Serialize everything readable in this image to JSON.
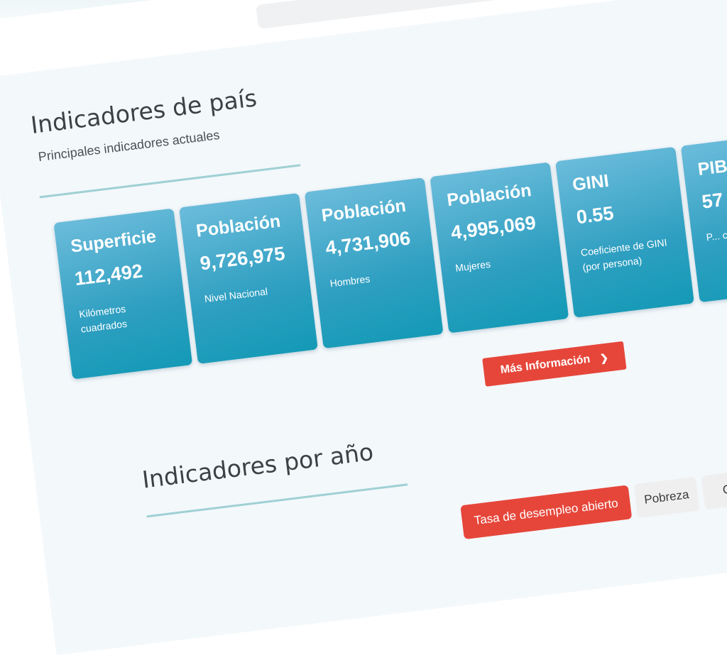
{
  "country_section": {
    "title": "Indicadores de país",
    "subtitle": "Principales indicadores actuales",
    "cards": [
      {
        "title": "Superficie",
        "value": "112,492",
        "description": "Kilómetros cuadrados"
      },
      {
        "title": "Población",
        "value": "9,726,975",
        "description": "Nivel Nacional"
      },
      {
        "title": "Población",
        "value": "4,731,906",
        "description": "Hombres"
      },
      {
        "title": "Población",
        "value": "4,995,069",
        "description": "Mujeres"
      },
      {
        "title": "GINI",
        "value": "0.55",
        "description": "Coeficiente de GINI (por persona)"
      },
      {
        "title": "PIB",
        "value": "57",
        "description": "P... c..."
      }
    ],
    "more_button": {
      "label": "Más Información",
      "icon": "chevron-right-icon"
    }
  },
  "year_section": {
    "title": "Indicadores por año",
    "tabs": [
      {
        "label": "Tasa de desempleo abierto",
        "active": true
      },
      {
        "label": "Pobreza",
        "active": false
      },
      {
        "label": "Coeficiente GINI",
        "active": false
      }
    ]
  },
  "colors": {
    "card_gradient_start": "#6cbcdb",
    "card_gradient_end": "#139ab6",
    "accent_red": "#e6463a",
    "underline_teal": "#9fd0d4",
    "background": "#f3f8fb"
  }
}
